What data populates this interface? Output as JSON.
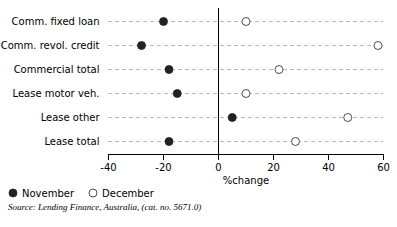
{
  "chart_data": {
    "type": "dot",
    "categories": [
      "Comm. fixed loan",
      "Comm. revol. credit",
      "Commercial total",
      "Lease motor veh.",
      "Lease other",
      "Lease total"
    ],
    "series": [
      {
        "name": "November",
        "color": "#222222",
        "marker": "circle",
        "values": [
          -20,
          -28,
          -18,
          -15,
          5,
          -18
        ]
      },
      {
        "name": "December",
        "color": "white",
        "marker": "circle",
        "values": [
          10,
          58,
          22,
          10,
          47,
          28
        ]
      }
    ],
    "orientation": "horizontal",
    "xlabel": "%change",
    "xlim": [
      -40,
      60
    ],
    "xticks": [
      -40,
      -20,
      0,
      20,
      40,
      60
    ],
    "grid": true,
    "legend": "lower left",
    "caption": "Source: Lending Finance, Australia, (cat. no. 5671.0)"
  }
}
